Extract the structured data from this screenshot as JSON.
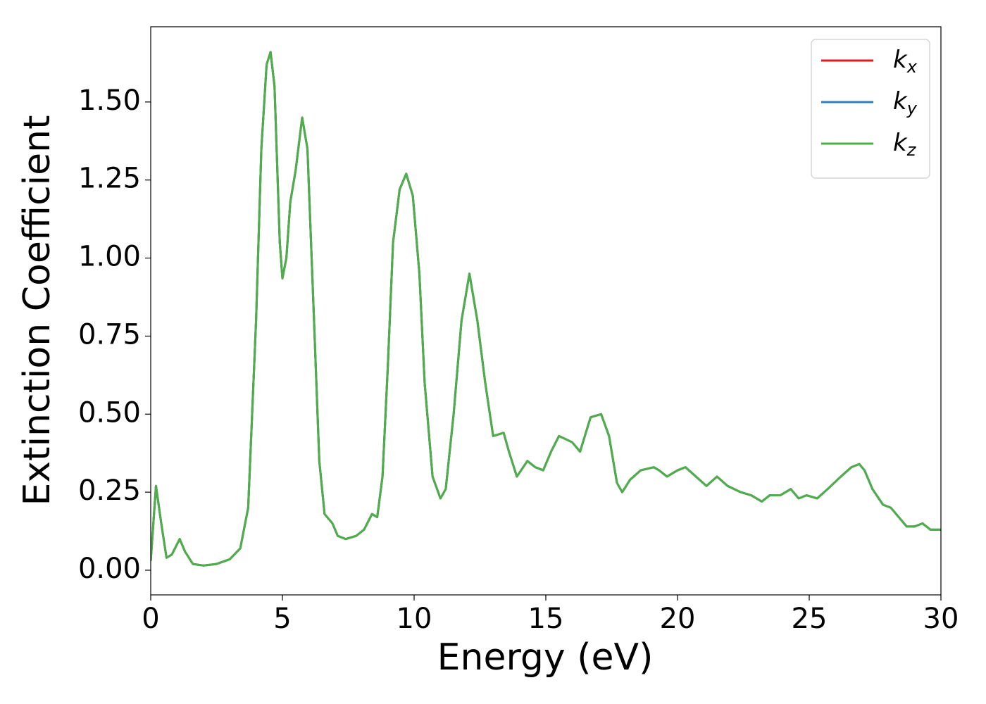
{
  "chart_data": {
    "type": "line",
    "xlabel": "Energy (eV)",
    "ylabel": "Extinction Coefficient",
    "x": [
      0,
      0.2,
      0.4,
      0.6,
      0.8,
      1.1,
      1.3,
      1.6,
      2.0,
      2.5,
      3.0,
      3.4,
      3.7,
      4.0,
      4.2,
      4.4,
      4.55,
      4.7,
      4.9,
      5.0,
      5.15,
      5.3,
      5.5,
      5.75,
      5.95,
      6.2,
      6.4,
      6.6,
      6.9,
      7.1,
      7.4,
      7.8,
      8.1,
      8.4,
      8.6,
      8.8,
      9.0,
      9.2,
      9.45,
      9.7,
      9.95,
      10.2,
      10.4,
      10.7,
      11.0,
      11.2,
      11.5,
      11.8,
      12.1,
      12.4,
      12.7,
      13.0,
      13.4,
      13.6,
      13.9,
      14.3,
      14.6,
      14.9,
      15.2,
      15.5,
      16.0,
      16.3,
      16.7,
      17.1,
      17.4,
      17.7,
      17.9,
      18.2,
      18.6,
      19.1,
      19.3,
      19.6,
      20.0,
      20.3,
      20.7,
      21.1,
      21.5,
      21.9,
      22.4,
      22.8,
      23.2,
      23.5,
      23.9,
      24.3,
      24.6,
      24.9,
      25.3,
      25.7,
      26.2,
      26.6,
      26.9,
      27.1,
      27.4,
      27.8,
      28.1,
      28.4,
      28.7,
      29.0,
      29.3,
      29.6,
      30.0
    ],
    "series": [
      {
        "name": "kx",
        "color": "#e41a1c",
        "values": [
          0.03,
          0.27,
          0.15,
          0.04,
          0.05,
          0.1,
          0.06,
          0.02,
          0.015,
          0.02,
          0.035,
          0.07,
          0.2,
          0.8,
          1.35,
          1.62,
          1.66,
          1.55,
          1.05,
          0.935,
          1.0,
          1.18,
          1.28,
          1.45,
          1.35,
          0.8,
          0.35,
          0.18,
          0.15,
          0.11,
          0.1,
          0.11,
          0.13,
          0.18,
          0.17,
          0.3,
          0.65,
          1.05,
          1.22,
          1.27,
          1.2,
          0.95,
          0.6,
          0.3,
          0.23,
          0.26,
          0.5,
          0.8,
          0.95,
          0.8,
          0.6,
          0.43,
          0.44,
          0.38,
          0.3,
          0.35,
          0.33,
          0.32,
          0.38,
          0.43,
          0.41,
          0.38,
          0.49,
          0.5,
          0.43,
          0.28,
          0.25,
          0.29,
          0.32,
          0.33,
          0.32,
          0.3,
          0.32,
          0.33,
          0.3,
          0.27,
          0.3,
          0.27,
          0.25,
          0.24,
          0.22,
          0.24,
          0.24,
          0.26,
          0.23,
          0.24,
          0.23,
          0.26,
          0.3,
          0.33,
          0.34,
          0.32,
          0.26,
          0.21,
          0.2,
          0.17,
          0.14,
          0.14,
          0.15,
          0.13,
          0.13
        ]
      },
      {
        "name": "ky",
        "color": "#377eb8",
        "values": [
          0.03,
          0.27,
          0.15,
          0.04,
          0.05,
          0.1,
          0.06,
          0.02,
          0.015,
          0.02,
          0.035,
          0.07,
          0.2,
          0.8,
          1.35,
          1.62,
          1.66,
          1.55,
          1.05,
          0.935,
          1.0,
          1.18,
          1.28,
          1.45,
          1.35,
          0.8,
          0.35,
          0.18,
          0.15,
          0.11,
          0.1,
          0.11,
          0.13,
          0.18,
          0.17,
          0.3,
          0.65,
          1.05,
          1.22,
          1.27,
          1.2,
          0.95,
          0.6,
          0.3,
          0.23,
          0.26,
          0.5,
          0.8,
          0.95,
          0.8,
          0.6,
          0.43,
          0.44,
          0.38,
          0.3,
          0.35,
          0.33,
          0.32,
          0.38,
          0.43,
          0.41,
          0.38,
          0.49,
          0.5,
          0.43,
          0.28,
          0.25,
          0.29,
          0.32,
          0.33,
          0.32,
          0.3,
          0.32,
          0.33,
          0.3,
          0.27,
          0.3,
          0.27,
          0.25,
          0.24,
          0.22,
          0.24,
          0.24,
          0.26,
          0.23,
          0.24,
          0.23,
          0.26,
          0.3,
          0.33,
          0.34,
          0.32,
          0.26,
          0.21,
          0.2,
          0.17,
          0.14,
          0.14,
          0.15,
          0.13,
          0.13
        ]
      },
      {
        "name": "kz",
        "color": "#4daf4a",
        "values": [
          0.03,
          0.27,
          0.15,
          0.04,
          0.05,
          0.1,
          0.06,
          0.02,
          0.015,
          0.02,
          0.035,
          0.07,
          0.2,
          0.8,
          1.35,
          1.62,
          1.66,
          1.55,
          1.05,
          0.935,
          1.0,
          1.18,
          1.28,
          1.45,
          1.35,
          0.8,
          0.35,
          0.18,
          0.15,
          0.11,
          0.1,
          0.11,
          0.13,
          0.18,
          0.17,
          0.3,
          0.65,
          1.05,
          1.22,
          1.27,
          1.2,
          0.95,
          0.6,
          0.3,
          0.23,
          0.26,
          0.5,
          0.8,
          0.95,
          0.8,
          0.6,
          0.43,
          0.44,
          0.38,
          0.3,
          0.35,
          0.33,
          0.32,
          0.38,
          0.43,
          0.41,
          0.38,
          0.49,
          0.5,
          0.43,
          0.28,
          0.25,
          0.29,
          0.32,
          0.33,
          0.32,
          0.3,
          0.32,
          0.33,
          0.3,
          0.27,
          0.3,
          0.27,
          0.25,
          0.24,
          0.22,
          0.24,
          0.24,
          0.26,
          0.23,
          0.24,
          0.23,
          0.26,
          0.3,
          0.33,
          0.34,
          0.32,
          0.26,
          0.21,
          0.2,
          0.17,
          0.14,
          0.14,
          0.15,
          0.13,
          0.13
        ]
      }
    ],
    "xlim": [
      0,
      30
    ],
    "xticks": [
      0,
      5,
      10,
      15,
      20,
      25,
      30
    ],
    "ylim": [
      -0.079,
      1.741
    ],
    "yticks": [
      {
        "value": 0,
        "label": "0.00"
      },
      {
        "value": 0.25,
        "label": "0.25"
      },
      {
        "value": 0.5,
        "label": "0.50"
      },
      {
        "value": 0.75,
        "label": "0.75"
      },
      {
        "value": 1.0,
        "label": "1.00"
      },
      {
        "value": 1.25,
        "label": "1.25"
      },
      {
        "value": 1.5,
        "label": "1.50"
      }
    ],
    "grid": false,
    "legend": "upper right"
  }
}
